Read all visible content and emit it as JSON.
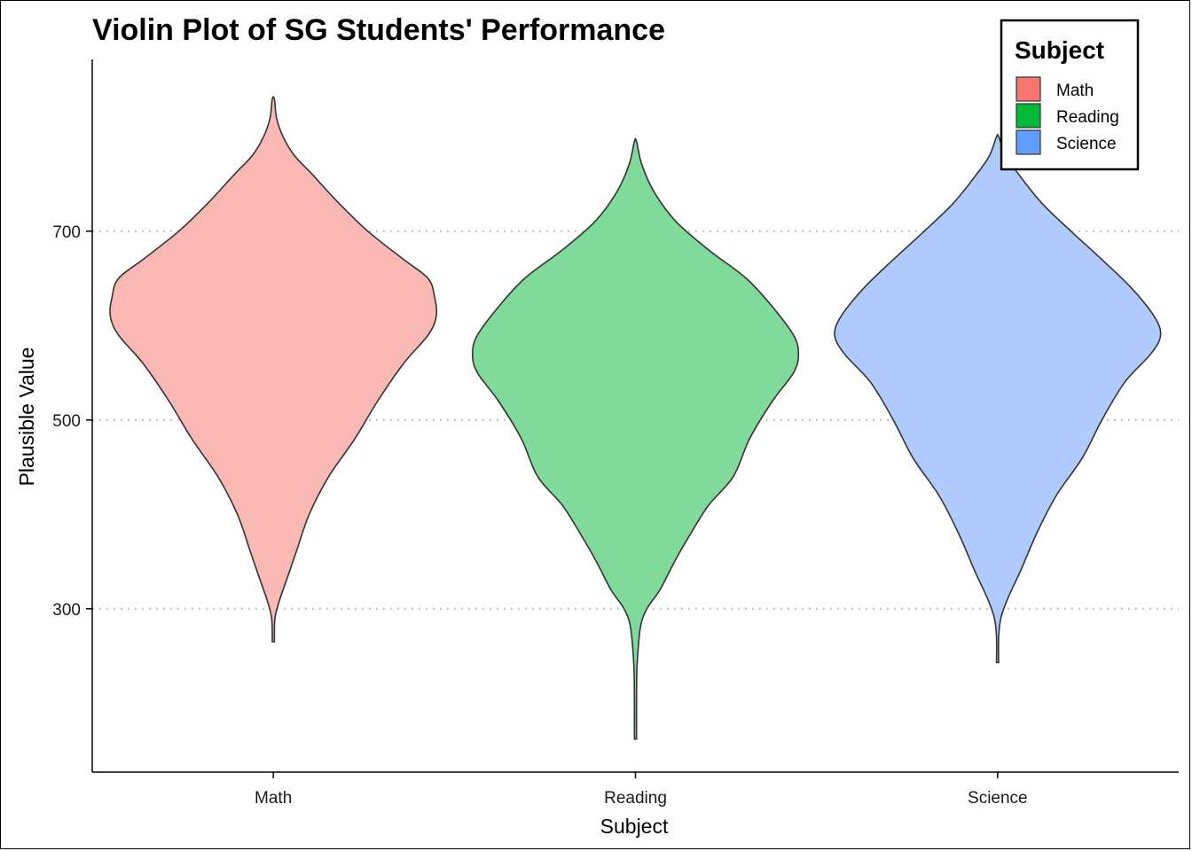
{
  "chart_data": {
    "type": "violin",
    "title": "Violin Plot of SG Students' Performance",
    "xlabel": "Subject",
    "ylabel": "Plausible Value",
    "categories": [
      "Math",
      "Reading",
      "Science"
    ],
    "yticks": [
      300,
      500,
      700
    ],
    "ylim": [
      127,
      882
    ],
    "grid": "horizontal dotted at major ticks",
    "legend": {
      "title": "Subject",
      "position": "top-right",
      "entries": [
        "Math",
        "Reading",
        "Science"
      ]
    },
    "series": [
      {
        "name": "Math",
        "color": "#F8766D",
        "fill": "#F9B8B3",
        "min": 265,
        "max": 840,
        "profile": [
          [
            265,
            0.0
          ],
          [
            290,
            0.01
          ],
          [
            310,
            0.04
          ],
          [
            330,
            0.08
          ],
          [
            360,
            0.14
          ],
          [
            400,
            0.22
          ],
          [
            440,
            0.34
          ],
          [
            480,
            0.5
          ],
          [
            520,
            0.64
          ],
          [
            560,
            0.8
          ],
          [
            590,
            0.95
          ],
          [
            610,
            1.0
          ],
          [
            630,
            0.99
          ],
          [
            650,
            0.95
          ],
          [
            670,
            0.8
          ],
          [
            700,
            0.58
          ],
          [
            730,
            0.4
          ],
          [
            760,
            0.24
          ],
          [
            780,
            0.13
          ],
          [
            800,
            0.06
          ],
          [
            820,
            0.02
          ],
          [
            840,
            0.0
          ]
        ]
      },
      {
        "name": "Reading",
        "color": "#00BA38",
        "fill": "#80DB9B",
        "min": 162,
        "max": 795,
        "profile": [
          [
            162,
            0.0
          ],
          [
            200,
            0.0
          ],
          [
            240,
            0.01
          ],
          [
            280,
            0.03
          ],
          [
            300,
            0.07
          ],
          [
            320,
            0.15
          ],
          [
            350,
            0.24
          ],
          [
            380,
            0.34
          ],
          [
            410,
            0.45
          ],
          [
            440,
            0.6
          ],
          [
            480,
            0.7
          ],
          [
            520,
            0.84
          ],
          [
            550,
            0.97
          ],
          [
            570,
            1.0
          ],
          [
            590,
            0.97
          ],
          [
            620,
            0.84
          ],
          [
            650,
            0.68
          ],
          [
            680,
            0.45
          ],
          [
            710,
            0.25
          ],
          [
            740,
            0.12
          ],
          [
            770,
            0.04
          ],
          [
            795,
            0.0
          ]
        ]
      },
      {
        "name": "Science",
        "color": "#619CFF",
        "fill": "#AFCBFE",
        "min": 243,
        "max": 800,
        "profile": [
          [
            243,
            0.0
          ],
          [
            270,
            0.0
          ],
          [
            290,
            0.02
          ],
          [
            310,
            0.06
          ],
          [
            340,
            0.14
          ],
          [
            380,
            0.24
          ],
          [
            420,
            0.36
          ],
          [
            460,
            0.52
          ],
          [
            500,
            0.64
          ],
          [
            540,
            0.78
          ],
          [
            570,
            0.94
          ],
          [
            590,
            1.0
          ],
          [
            610,
            0.96
          ],
          [
            640,
            0.82
          ],
          [
            670,
            0.64
          ],
          [
            700,
            0.45
          ],
          [
            730,
            0.27
          ],
          [
            760,
            0.13
          ],
          [
            780,
            0.05
          ],
          [
            800,
            0.0
          ]
        ]
      }
    ]
  }
}
